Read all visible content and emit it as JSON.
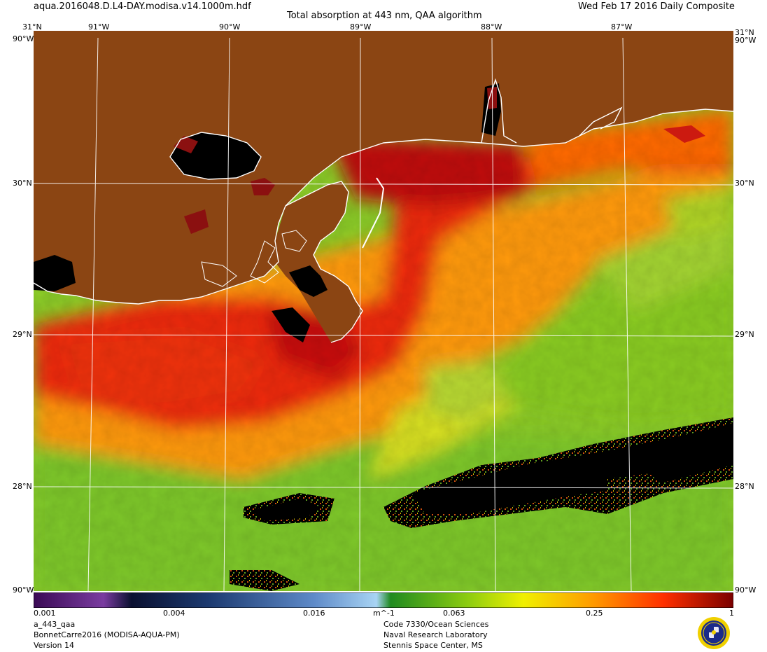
{
  "header": {
    "file_name": "aqua.2016048.D.L4-DAY.modisa.v14.1000m.hdf",
    "product_title": "Total absorption at 443 nm, QAA algorithm",
    "date_label": "Wed Feb 17 2016 Daily Composite"
  },
  "map": {
    "longitude_labels": [
      "91°W",
      "90°W",
      "89°W",
      "88°W",
      "87°W"
    ],
    "latitude_labels": [
      "30°N",
      "29°N",
      "28°N"
    ],
    "corner_top_lat": "31°N",
    "corner_edge_label": "90°W",
    "corner_bottom_label": "90°W",
    "extent": {
      "lon_min": -91.5,
      "lon_max": -86.2,
      "lat_min": 27.35,
      "lat_max": 31.0
    },
    "colors": {
      "land": "#8b4513",
      "coastline": "#ffffff",
      "grid": "#ffffff",
      "no_data": "#000000",
      "high_absorption": "#c00000",
      "mid_absorption": "#ff8000",
      "low_absorption": "#66bb22"
    }
  },
  "colorbar": {
    "tick_labels": [
      "0.001",
      "0.004",
      "0.016",
      "0.063",
      "0.25",
      "1"
    ],
    "unit_label": "m^-1",
    "colors": [
      "#3a0a55",
      "#7a3ca0",
      "#0a1030",
      "#1c3a70",
      "#5e8ac8",
      "#a8d4f4",
      "#208a20",
      "#8ccc10",
      "#f0f000",
      "#ff9a00",
      "#ff3000",
      "#7a0000"
    ]
  },
  "footer": {
    "variable": "a_443_qaa",
    "dataset": "BonnetCarre2016 (MODISA-AQUA-PM)",
    "version": "Version 14",
    "org_line1": "Code 7330/Ocean Sciences",
    "org_line2": "Naval Research Laboratory",
    "org_line3": "Stennis Space Center, MS"
  }
}
